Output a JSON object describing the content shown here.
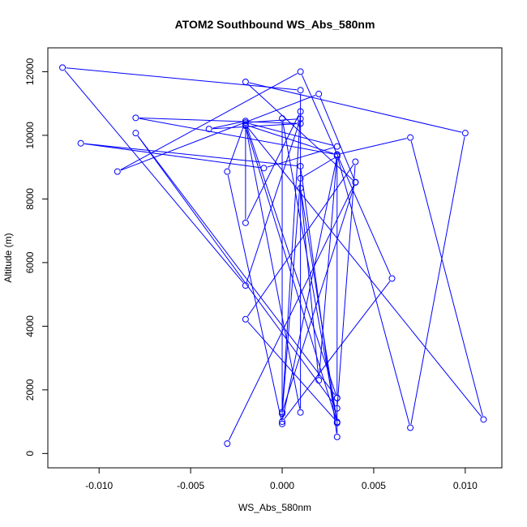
{
  "chart_data": {
    "type": "line",
    "title": "ATOM2 Southbound WS_Abs_580nm",
    "xlabel": "WS_Abs_580nm",
    "ylabel": "Altitude (m)",
    "xlim": [
      -0.0128,
      0.012
    ],
    "ylim": [
      -450,
      12750
    ],
    "x_ticks": [
      -0.01,
      -0.005,
      0.0,
      0.005,
      0.01
    ],
    "x_tick_labels": [
      "-0.010",
      "-0.005",
      "0.000",
      "0.005",
      "0.010"
    ],
    "y_ticks": [
      0,
      2000,
      4000,
      6000,
      8000,
      10000,
      12000
    ],
    "y_tick_labels": [
      "0",
      "2000",
      "4000",
      "6000",
      "8000",
      "10000",
      "12000"
    ],
    "grid": false,
    "legend": "none",
    "markers": "open-circle",
    "color": "#0000ff",
    "series": [
      {
        "x": [
          -0.003,
          0.004,
          0.0,
          0.001,
          -0.002,
          -0.002,
          0.003,
          -0.001,
          -0.011,
          0.001,
          0.003,
          0.003,
          -0.008,
          0.003,
          0.004,
          -0.002,
          0.003,
          0.001,
          0.002,
          0.003,
          0.007,
          0.011,
          -0.002,
          0.003,
          -0.008,
          0.001,
          -0.004,
          -0.002,
          -0.003,
          0.0,
          0.0,
          0.003,
          -0.002,
          0.001,
          0.001,
          -0.012,
          -0.002,
          0.001,
          -0.002,
          0.003,
          0.003,
          0.007,
          0.01,
          -0.002,
          0.004,
          0.002,
          -0.009,
          0.001,
          0.006,
          0.0,
          0.003,
          0.001,
          0.0
        ],
        "y": [
          310,
          8530,
          1300,
          10750,
          7250,
          10400,
          9650,
          8970,
          9750,
          9030,
          520,
          1750,
          10070,
          1420,
          9170,
          4220,
          990,
          8340,
          2300,
          9400,
          9930,
          1070,
          10330,
          9390,
          10550,
          10370,
          10200,
          10450,
          8860,
          930,
          10530,
          960,
          10300,
          1290,
          11420,
          12130,
          5280,
          10520,
          10400,
          1740,
          9380,
          810,
          10070,
          11680,
          8520,
          11300,
          8860,
          12000,
          5500,
          1000,
          9340,
          8650,
          1250
        ]
      }
    ]
  }
}
